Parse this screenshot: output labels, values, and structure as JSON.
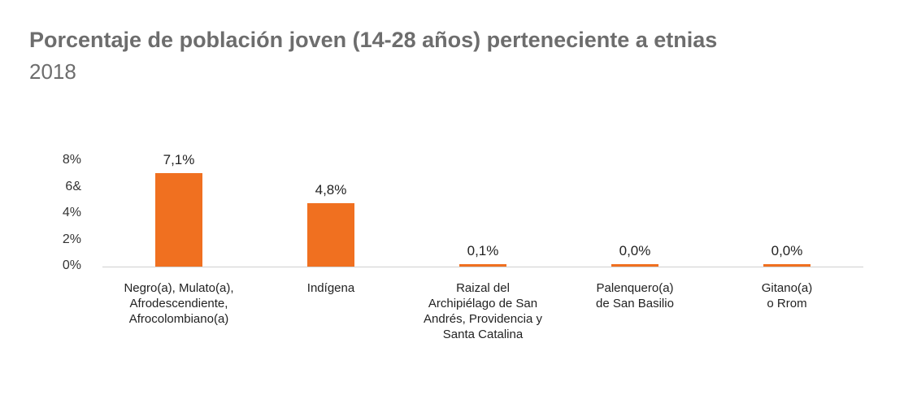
{
  "title": "Porcentaje de población joven (14-28 años) perteneciente a etnias",
  "subtitle": "2018",
  "chart_data": {
    "type": "bar",
    "categories": [
      "Negro(a), Mulato(a),\nAfrodescendiente,\nAfrocolombiano(a)",
      "Indígena",
      "Raizal del\nArchipiélago de San\nAndrés, Providencia y\nSanta Catalina",
      "Palenquero(a)\nde San Basilio",
      "Gitano(a)\no Rrom"
    ],
    "values": [
      7.1,
      4.8,
      0.1,
      0.0,
      0.0
    ],
    "data_labels": [
      "7,1%",
      "4,8%",
      "0,1%",
      "0,0%",
      "0,0%"
    ],
    "ytick_labels": [
      "0%",
      "2%",
      "4%",
      "6&",
      "8%"
    ],
    "yticks": [
      0,
      2,
      4,
      6,
      8
    ],
    "ylim": [
      0,
      8
    ],
    "bar_color": "#f07020",
    "grid": false,
    "legend": "none"
  }
}
